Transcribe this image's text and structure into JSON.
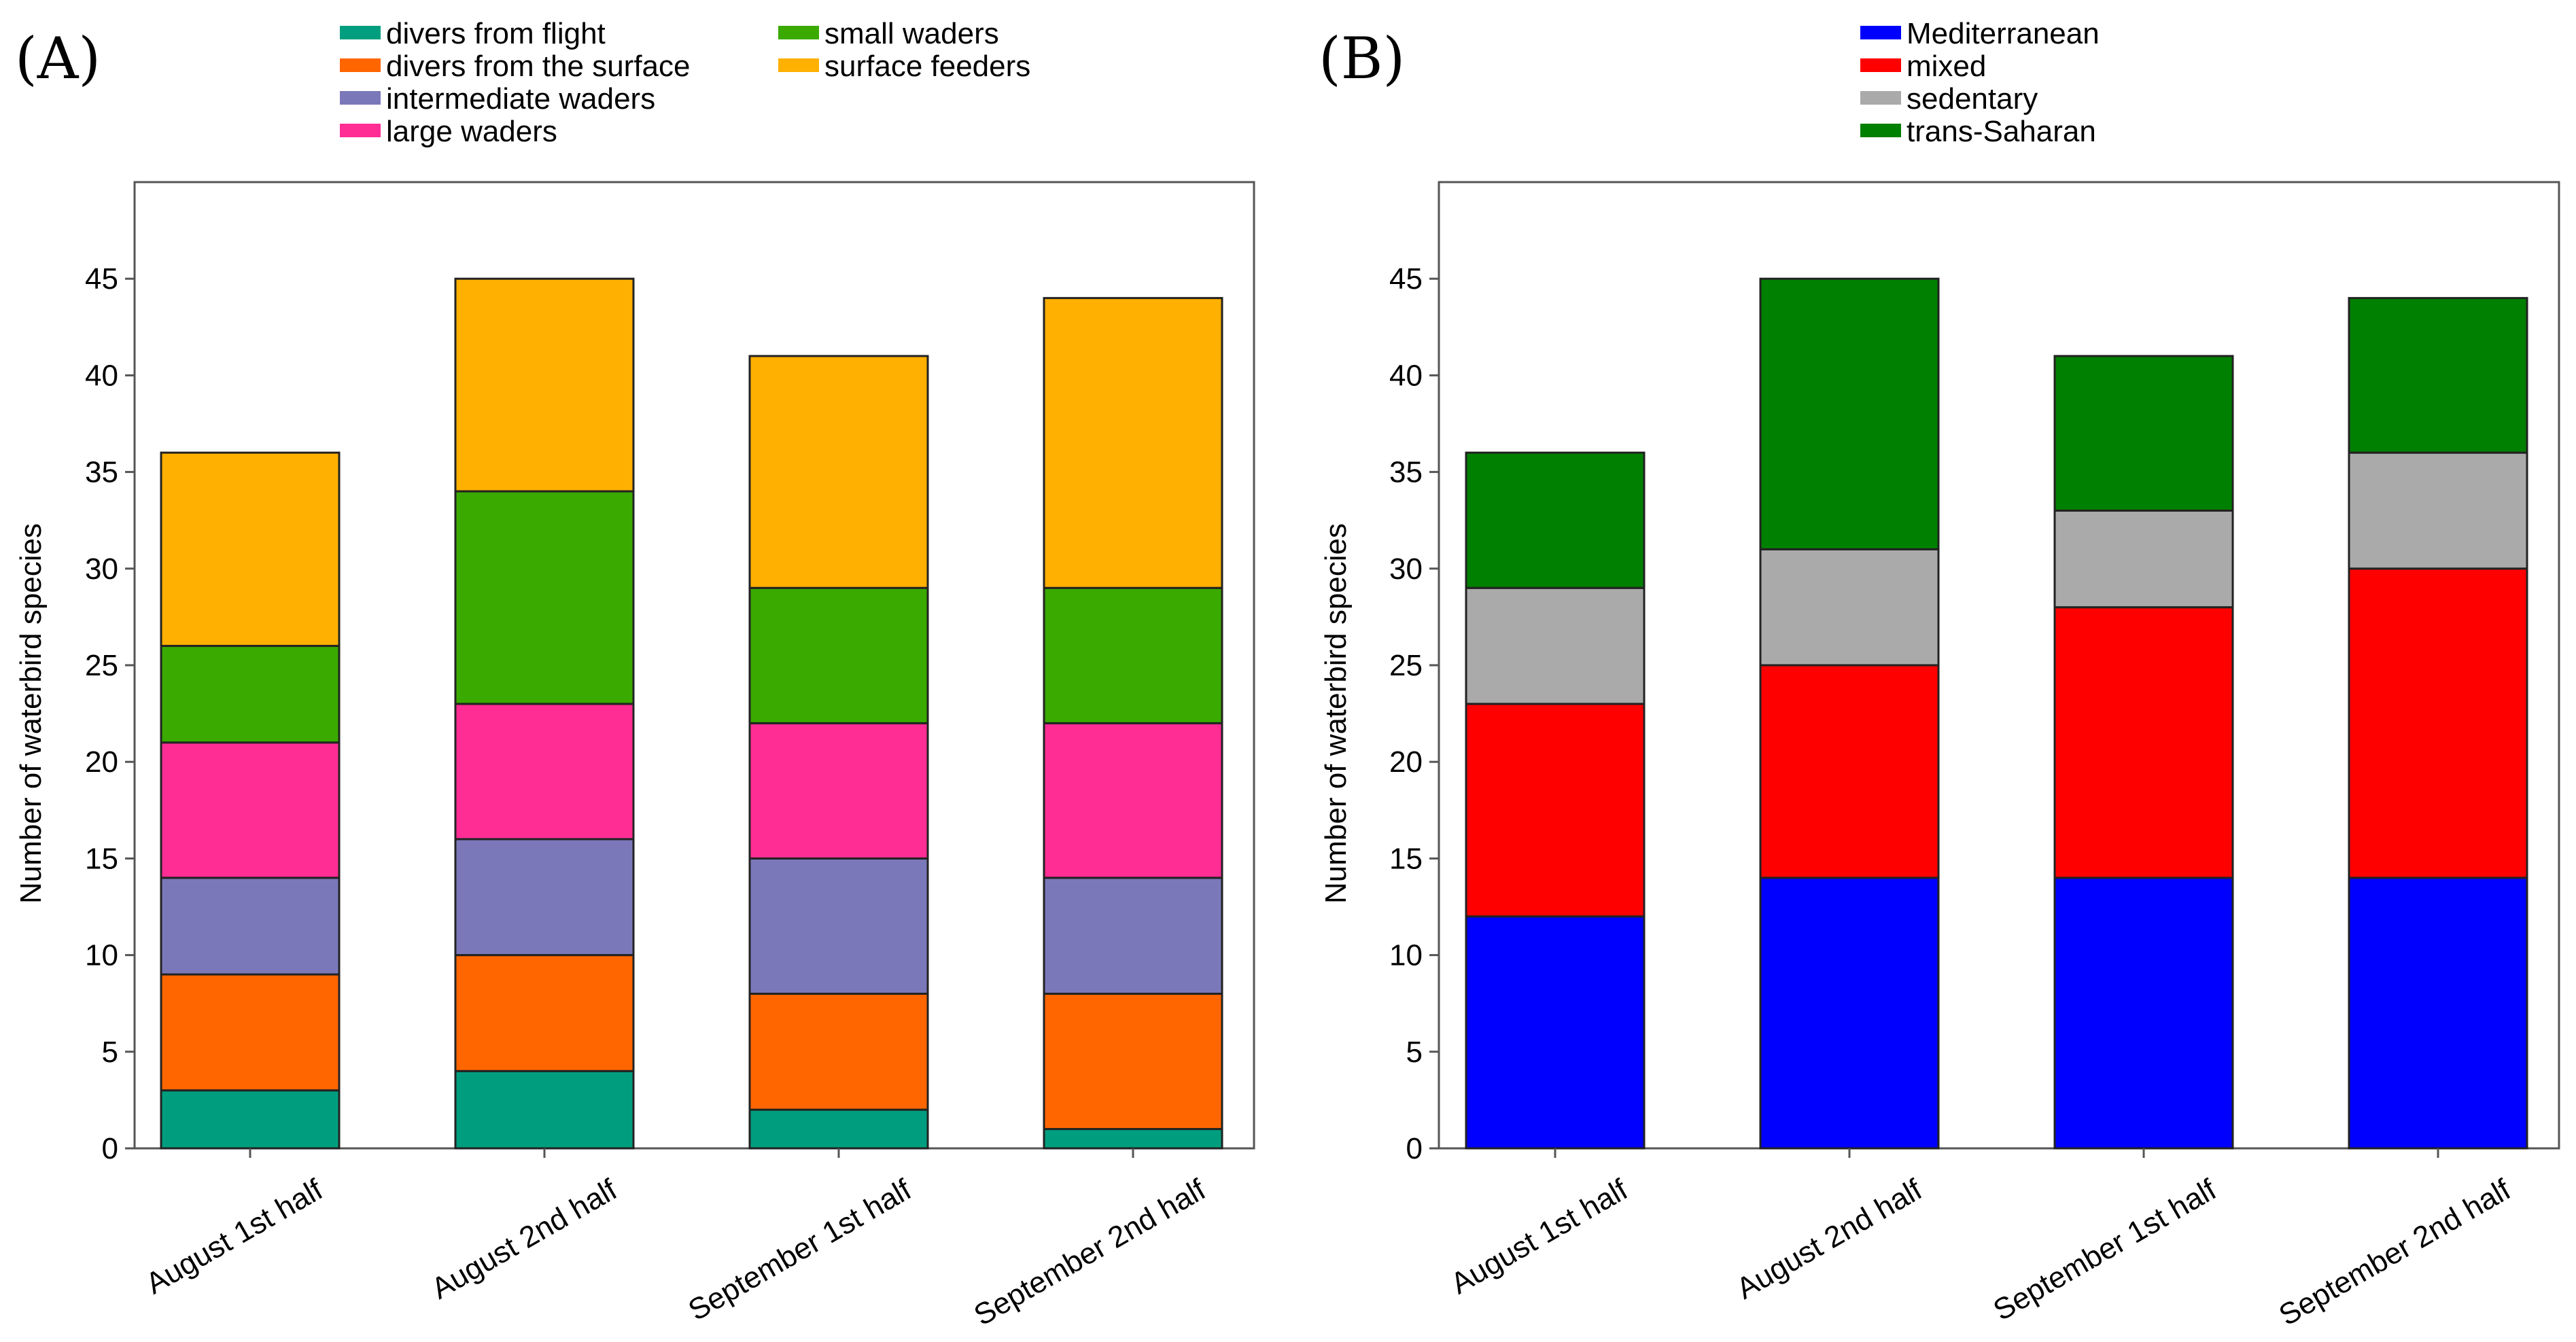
{
  "chart_data": [
    {
      "type": "bar",
      "stacked": true,
      "panel_label": "(A)",
      "title": "",
      "xlabel": "",
      "ylabel": "Number of waterbird species",
      "ylim": [
        0,
        50
      ],
      "yticks": [
        0,
        5,
        10,
        15,
        20,
        25,
        30,
        35,
        40,
        45
      ],
      "grid": false,
      "legend_position": "top",
      "categories": [
        "August 1st half",
        "August 2nd half",
        "September 1st half",
        "September 2nd half"
      ],
      "series": [
        {
          "name": "divers from flight",
          "color": "#009E7E",
          "values": [
            3,
            4,
            2,
            1
          ]
        },
        {
          "name": "divers from the surface",
          "color": "#FF6600",
          "values": [
            6,
            6,
            6,
            7
          ]
        },
        {
          "name": "intermediate waders",
          "color": "#7B78BA",
          "values": [
            5,
            6,
            7,
            6
          ]
        },
        {
          "name": "large waders",
          "color": "#FF2D94",
          "values": [
            7,
            7,
            7,
            8
          ]
        },
        {
          "name": "small waders",
          "color": "#3AAA00",
          "values": [
            5,
            11,
            7,
            7
          ]
        },
        {
          "name": "surface feeders",
          "color": "#FFB000",
          "values": [
            10,
            11,
            12,
            15
          ]
        }
      ]
    },
    {
      "type": "bar",
      "stacked": true,
      "panel_label": "(B)",
      "title": "",
      "xlabel": "",
      "ylabel": "Number of waterbird species",
      "ylim": [
        0,
        50
      ],
      "yticks": [
        0,
        5,
        10,
        15,
        20,
        25,
        30,
        35,
        40,
        45
      ],
      "grid": false,
      "legend_position": "top",
      "categories": [
        "August 1st half",
        "August 2nd half",
        "September 1st half",
        "September 2nd half"
      ],
      "series": [
        {
          "name": "Mediterranean",
          "color": "#0000FF",
          "values": [
            12,
            14,
            14,
            14
          ]
        },
        {
          "name": "mixed",
          "color": "#FF0000",
          "values": [
            11,
            11,
            14,
            16
          ]
        },
        {
          "name": "sedentary",
          "color": "#AAAAAA",
          "values": [
            6,
            6,
            5,
            6
          ]
        },
        {
          "name": "trans-Saharan",
          "color": "#008000",
          "values": [
            7,
            14,
            8,
            8
          ]
        }
      ]
    }
  ]
}
